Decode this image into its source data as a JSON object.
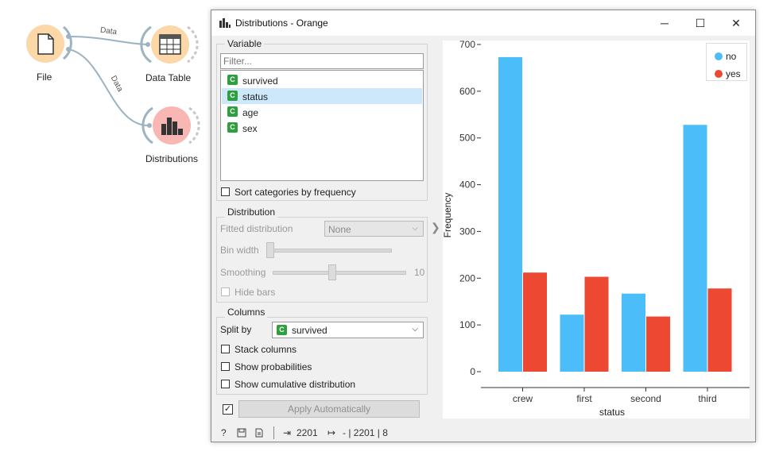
{
  "workflow": {
    "nodes": [
      {
        "label": "File",
        "icon": "file-icon",
        "color": "#fcd7a8"
      },
      {
        "label": "Data Table",
        "icon": "table-icon",
        "color": "#fcd7a8"
      },
      {
        "label": "Distributions",
        "icon": "histogram-icon",
        "color": "#f8b7b3"
      }
    ],
    "links": [
      {
        "label": "Data"
      },
      {
        "label": "Data"
      }
    ]
  },
  "window": {
    "title": "Distributions - Orange",
    "buttons": {
      "minimize": "─",
      "maximize": "☐",
      "close": "✕"
    }
  },
  "variable": {
    "section_title": "Variable",
    "filter_placeholder": "Filter...",
    "items": [
      {
        "name": "survived",
        "type": "C"
      },
      {
        "name": "status",
        "type": "C",
        "selected": true
      },
      {
        "name": "age",
        "type": "C"
      },
      {
        "name": "sex",
        "type": "C"
      }
    ],
    "sort_label": "Sort categories by frequency"
  },
  "distribution": {
    "section_title": "Distribution",
    "fitted_label": "Fitted distribution",
    "fitted_value": "None",
    "bin_width_label": "Bin width",
    "smoothing_label": "Smoothing",
    "smoothing_value": "10",
    "hide_bars_label": "Hide bars"
  },
  "columns": {
    "section_title": "Columns",
    "split_by_label": "Split by",
    "split_by_value": "survived",
    "stack_label": "Stack columns",
    "probabilities_label": "Show probabilities",
    "cumulative_label": "Show cumulative distribution"
  },
  "apply": {
    "label": "Apply Automatically",
    "checked": true
  },
  "status": {
    "input_count": "2201",
    "output_text": "- | 2201 | 8"
  },
  "chart_data": {
    "type": "bar",
    "categories": [
      "crew",
      "first",
      "second",
      "third"
    ],
    "series": [
      {
        "name": "no",
        "color": "#4bbdf8",
        "values": [
          673,
          122,
          167,
          528
        ]
      },
      {
        "name": "yes",
        "color": "#ec4832",
        "values": [
          212,
          203,
          118,
          178
        ]
      }
    ],
    "xlabel": "status",
    "ylabel": "Frequency",
    "ylim": [
      0,
      700
    ],
    "yticks": [
      "0",
      "100",
      "200",
      "300",
      "400",
      "500",
      "600",
      "700"
    ],
    "legend_position": "top-right"
  }
}
